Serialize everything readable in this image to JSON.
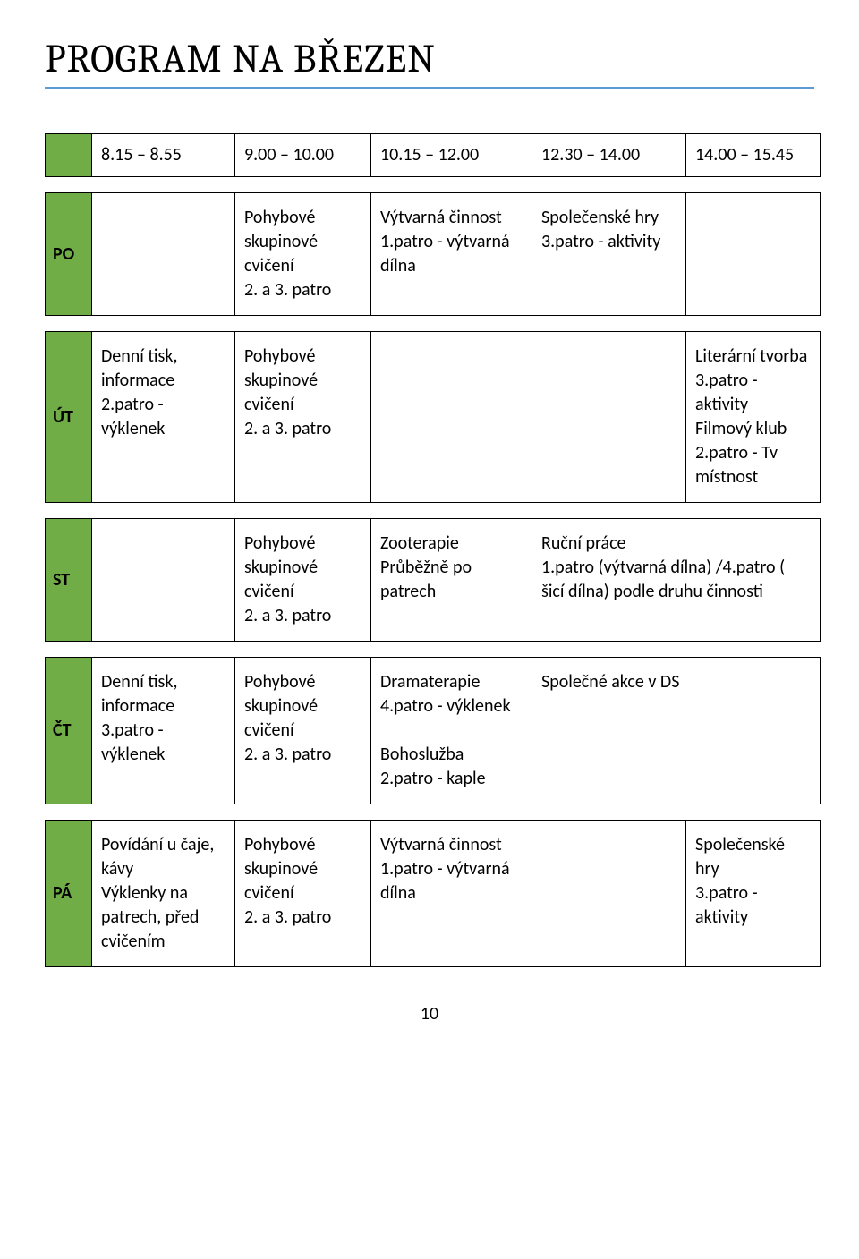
{
  "title": "PROGRAM NA BŘEZEN",
  "page_number": "10",
  "colors": {
    "day_bg": "#70ad47",
    "underline": "#5b9bd5",
    "border": "#000000",
    "text": "#000000",
    "background": "#ffffff"
  },
  "time_headers": [
    "8.15 – 8.55",
    "9.00 – 10.00",
    "10.15 – 12.00",
    "12.30 – 14.00",
    "14.00 – 15.45"
  ],
  "rows": [
    {
      "day": "PO",
      "c1": "",
      "c2": "Pohybové skupinové cvičení\n  2. a 3. patro",
      "c3": "Výtvarná činnost\n1.patro - výtvarná dílna",
      "c4": "Společenské hry\n3.patro - aktivity",
      "c5": "",
      "c4_colspan": 1
    },
    {
      "day": "ÚT",
      "c1": "Denní tisk, informace\n2.patro - výklenek",
      "c2": "Pohybové skupinové cvičení\n  2. a 3. patro",
      "c3": "",
      "c4": "",
      "c5": "Literární tvorba\n3.patro - aktivity\nFilmový klub\n2.patro - Tv místnost"
    },
    {
      "day": "ST",
      "c1": "",
      "c2": "Pohybové skupinové cvičení\n  2. a 3. patro",
      "c3": "Zooterapie\nPrůběžně po patrech",
      "c4": "Ruční práce\n1.patro (výtvarná dílna) /4.patro    ( šicí dílna) podle druhu činnosti",
      "c5": "",
      "merge45": true
    },
    {
      "day": "ČT",
      "c1": "Denní tisk, informace\n3.patro - výklenek",
      "c2": "Pohybové skupinové cvičení\n  2. a 3. patro",
      "c3": "Dramaterapie\n4.patro - výklenek\n\n Bohoslužba\n2.patro - kaple",
      "c4": "Společné akce v DS",
      "c5": "",
      "merge45": true
    },
    {
      "day": "PÁ",
      "c1": "Povídání u čaje, kávy\nVýklenky na patrech, před cvičením",
      "c2": "Pohybové skupinové cvičení\n  2. a 3. patro",
      "c3": "Výtvarná činnost\n1.patro - výtvarná dílna",
      "c4": "",
      "c5": "Společenské hry\n3.patro - aktivity"
    }
  ]
}
